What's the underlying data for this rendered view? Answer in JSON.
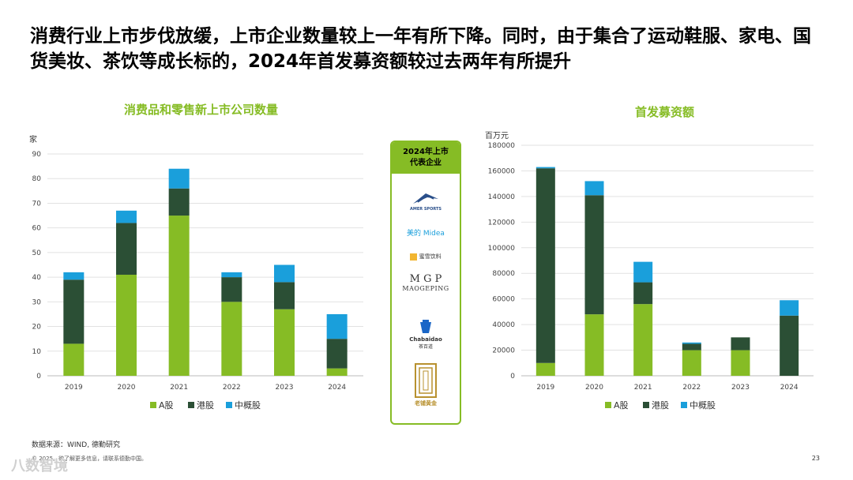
{
  "title": "消费行业上市步伐放缓，上市企业数量较上一年有所下降。同时，由于集合了运动鞋服、家电、国货美妆、茶饮等成长标的，2024年首发募资额较过去两年有所提升",
  "colors": {
    "a_share": "#86bc25",
    "hk_share": "#2b4f35",
    "us_china": "#1a9fdb",
    "accent": "#86bc25"
  },
  "panel": {
    "header_line1": "2024年上市",
    "header_line2": "代表企业",
    "logos": [
      {
        "name": "amer-sports",
        "text": "AMER SPORTS"
      },
      {
        "name": "midea",
        "text": "美的 Midea"
      },
      {
        "name": "mixue",
        "text": "蜜雪饮料"
      },
      {
        "name": "maogeping",
        "text": "MAOGEPING"
      },
      {
        "name": "chabaidao",
        "text": "Chabaidao"
      },
      {
        "name": "laopu-gold",
        "text": "老铺黄金"
      }
    ],
    "maogeping_mark": "M G P",
    "chabaidao_cn": "茶百道"
  },
  "chart_data": [
    {
      "type": "bar",
      "stacked": true,
      "title": "消费品和零售新上市公司数量",
      "ylabel": "家",
      "categories": [
        "2019",
        "2020",
        "2021",
        "2022",
        "2023",
        "2024"
      ],
      "ylim": [
        0,
        90
      ],
      "yticks": [
        0,
        10,
        20,
        30,
        40,
        50,
        60,
        70,
        80,
        90
      ],
      "grid": true,
      "legend_position": "bottom",
      "series": [
        {
          "name": "A股",
          "values": [
            13,
            41,
            65,
            30,
            27,
            3
          ]
        },
        {
          "name": "港股",
          "values": [
            26,
            21,
            11,
            10,
            11,
            12
          ]
        },
        {
          "name": "中概股",
          "values": [
            3,
            5,
            8,
            2,
            7,
            10
          ]
        }
      ]
    },
    {
      "type": "bar",
      "stacked": true,
      "title": "首发募资额",
      "ylabel": "百万元",
      "categories": [
        "2019",
        "2020",
        "2021",
        "2022",
        "2023",
        "2024"
      ],
      "ylim": [
        0,
        180000
      ],
      "yticks": [
        0,
        20000,
        40000,
        60000,
        80000,
        100000,
        120000,
        140000,
        160000,
        180000
      ],
      "grid": true,
      "legend_position": "bottom",
      "series": [
        {
          "name": "A股",
          "values": [
            10000,
            48000,
            56000,
            20000,
            20000,
            0
          ]
        },
        {
          "name": "港股",
          "values": [
            152000,
            93000,
            17000,
            5000,
            10000,
            47000
          ]
        },
        {
          "name": "中概股",
          "values": [
            1000,
            11000,
            16000,
            1000,
            0,
            12000
          ]
        }
      ]
    }
  ],
  "footer": {
    "source": "数据来源：WIND, 德勤研究",
    "copyright": "© 2025。欲了解更多信息，请联系德勤中国。",
    "page": "23",
    "watermark": "八数智境"
  }
}
